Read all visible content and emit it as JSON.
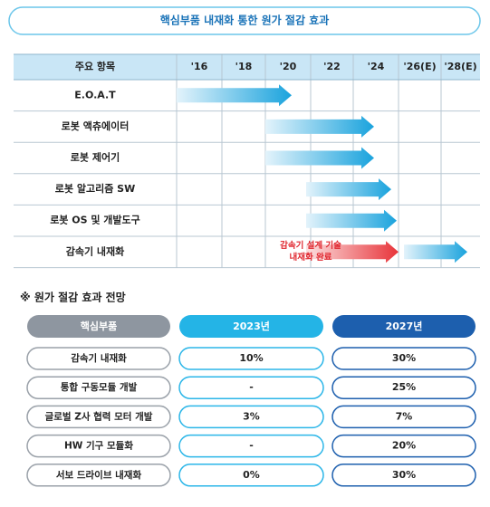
{
  "title": "핵심부품 내재화 통한 원가 절감 효과",
  "timeline": {
    "header": [
      "주요 항목",
      "'16",
      "'18",
      "'20",
      "'22",
      "'24",
      "'26(E)",
      "'28(E)"
    ],
    "rows": [
      {
        "label": "E.O.A.T"
      },
      {
        "label": "로봇 액츄에이터"
      },
      {
        "label": "로봇 제어기"
      },
      {
        "label": "로봇 알고리즘 SW"
      },
      {
        "label": "로봇 OS 및 개발도구"
      },
      {
        "label": "감속기 내재화",
        "note": [
          "감속기 설계 기술",
          "내재화 완료"
        ]
      }
    ]
  },
  "outlook": {
    "heading": "※ 원가 절감 효과 전망",
    "header": [
      "핵심부품",
      "2023년",
      "2027년"
    ],
    "rows": [
      [
        "감속기 내재화",
        "10%",
        "30%"
      ],
      [
        "통합 구동모듈 개발",
        "-",
        "25%"
      ],
      [
        "글로벌 Z사 협력 모터 개발",
        "3%",
        "7%"
      ],
      [
        "HW 기구 모듈화",
        "-",
        "20%"
      ],
      [
        "서보 드라이브 내재화",
        "0%",
        "30%"
      ]
    ]
  }
}
